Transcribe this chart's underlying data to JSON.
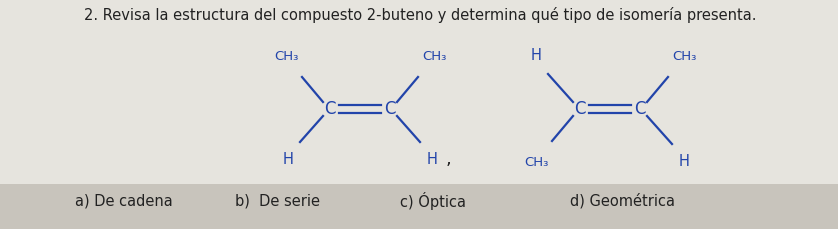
{
  "title": "2. Revisa la estructura del compuesto 2-buteno y determina qué tipo de isomería presenta.",
  "title_fontsize": 10.5,
  "bg_color_top": "#e8e6e0",
  "bg_color_bottom": "#c8c4bc",
  "text_color": "#2244aa",
  "black_text_color": "#222222",
  "answers": [
    "a) De cadena",
    "b)  De serie",
    "c) Óptica",
    "d) Geométrica"
  ],
  "answer_fontsize": 10.5,
  "mol_color": "#2244aa",
  "comma": ","
}
